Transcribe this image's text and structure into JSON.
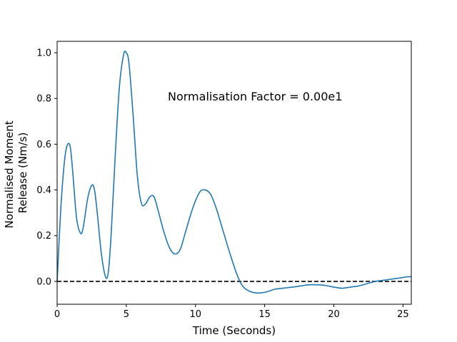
{
  "chart_data": {
    "type": "line",
    "title": "",
    "xlabel": "Time (Seconds)",
    "ylabel_lines": [
      "Normalised Moment",
      "Release (Nm/s)"
    ],
    "xlim": [
      0,
      25.6
    ],
    "ylim": [
      -0.1,
      1.05
    ],
    "x_ticks": [
      0,
      5,
      10,
      15,
      20,
      25
    ],
    "x_tick_labels": [
      "0",
      "5",
      "10",
      "15",
      "20",
      "25"
    ],
    "y_ticks": [
      0.0,
      0.2,
      0.4,
      0.6,
      0.8,
      1.0
    ],
    "y_tick_labels": [
      "0.0",
      "0.2",
      "0.4",
      "0.6",
      "0.8",
      "1.0"
    ],
    "grid": false,
    "annotation": {
      "text": "Normalisation Factor = 0.00e1",
      "x": 8.0,
      "y": 0.81
    },
    "reference_line": {
      "y": 0.0,
      "style": "dashed",
      "color": "#000000"
    },
    "series": [
      {
        "color": "#1f77b4",
        "x": [
          0,
          0.3,
          0.6,
          0.9,
          1.1,
          1.4,
          1.7,
          1.9,
          2.2,
          2.5,
          2.7,
          2.9,
          3.2,
          3.5,
          3.7,
          3.9,
          4.2,
          4.5,
          4.8,
          5.0,
          5.2,
          5.5,
          5.8,
          6.1,
          6.4,
          6.7,
          7.0,
          7.3,
          7.7,
          8.1,
          8.5,
          8.9,
          9.3,
          9.8,
          10.3,
          10.7,
          11.1,
          11.5,
          12.0,
          12.5,
          13.0,
          13.4,
          13.8,
          14.3,
          14.8,
          15.2,
          15.7,
          16.3,
          17.0,
          17.6,
          18.2,
          18.8,
          19.4,
          20.0,
          20.6,
          21.2,
          21.8,
          22.4,
          23.0,
          23.6,
          24.2,
          24.8,
          25.3,
          25.6
        ],
        "y": [
          0.0,
          0.35,
          0.56,
          0.6,
          0.5,
          0.28,
          0.21,
          0.24,
          0.36,
          0.42,
          0.4,
          0.3,
          0.12,
          0.02,
          0.04,
          0.2,
          0.55,
          0.85,
          0.99,
          1.0,
          0.95,
          0.72,
          0.46,
          0.34,
          0.34,
          0.37,
          0.37,
          0.31,
          0.22,
          0.15,
          0.12,
          0.14,
          0.22,
          0.32,
          0.39,
          0.4,
          0.38,
          0.32,
          0.22,
          0.12,
          0.03,
          -0.02,
          -0.04,
          -0.05,
          -0.05,
          -0.045,
          -0.035,
          -0.03,
          -0.025,
          -0.02,
          -0.015,
          -0.015,
          -0.018,
          -0.025,
          -0.03,
          -0.025,
          -0.02,
          -0.01,
          0.0,
          0.005,
          0.01,
          0.015,
          0.02,
          0.02
        ]
      }
    ]
  }
}
